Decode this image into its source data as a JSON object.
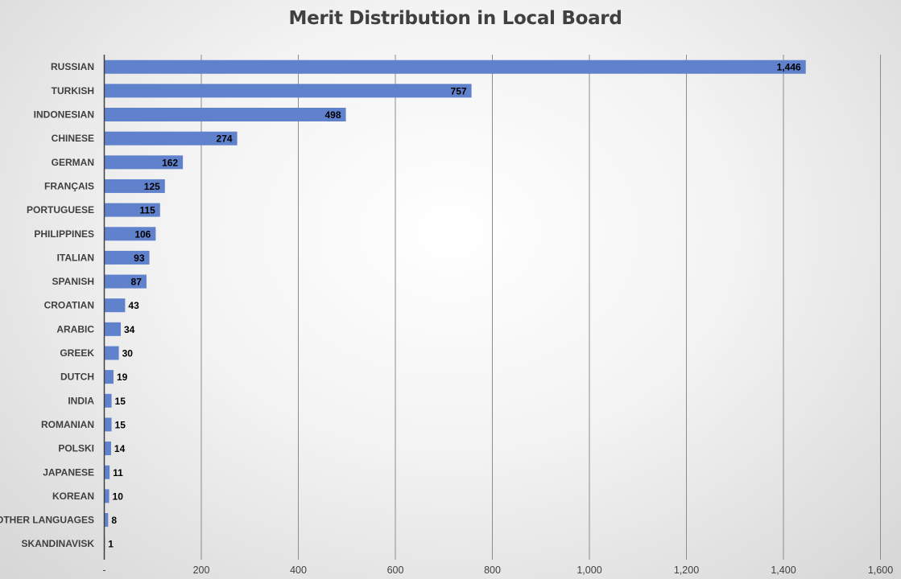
{
  "chart_data": {
    "type": "bar",
    "orientation": "horizontal",
    "title": "Merit Distribution in Local Board",
    "xlabel": "",
    "ylabel": "",
    "categories": [
      "RUSSIAN",
      "TURKISH",
      "INDONESIAN",
      "CHINESE",
      "GERMAN",
      "FRANÇAIS",
      "PORTUGUESE",
      "PHILIPPINES",
      "ITALIAN",
      "SPANISH",
      "CROATIAN",
      "ARABIC",
      "GREEK",
      "DUTCH",
      "INDIA",
      "ROMANIAN",
      "POLSKI",
      "JAPANESE",
      "KOREAN",
      "OTHER LANGUAGES",
      "SKANDINAVISK"
    ],
    "values": [
      1446,
      757,
      498,
      274,
      162,
      125,
      115,
      106,
      93,
      87,
      43,
      34,
      30,
      19,
      15,
      15,
      14,
      11,
      10,
      8,
      1
    ],
    "value_labels": [
      "1,446",
      "757",
      "498",
      "274",
      "162",
      "125",
      "115",
      "106",
      "93",
      "87",
      "43",
      "34",
      "30",
      "19",
      "15",
      "15",
      "14",
      "11",
      "10",
      "8",
      "1"
    ],
    "xlim": [
      0,
      1600
    ],
    "xticks": [
      0,
      200,
      400,
      600,
      800,
      1000,
      1200,
      1400,
      1600
    ],
    "xtick_labels": [
      "-",
      "200",
      "400",
      "600",
      "800",
      "1,000",
      "1,200",
      "1,400",
      "1,600"
    ],
    "grid": "vertical",
    "legend": "none",
    "colors": {
      "bar": "#6082cc",
      "gridline": "#8c8c8c",
      "axis": "#404040",
      "title": "#404040"
    }
  }
}
